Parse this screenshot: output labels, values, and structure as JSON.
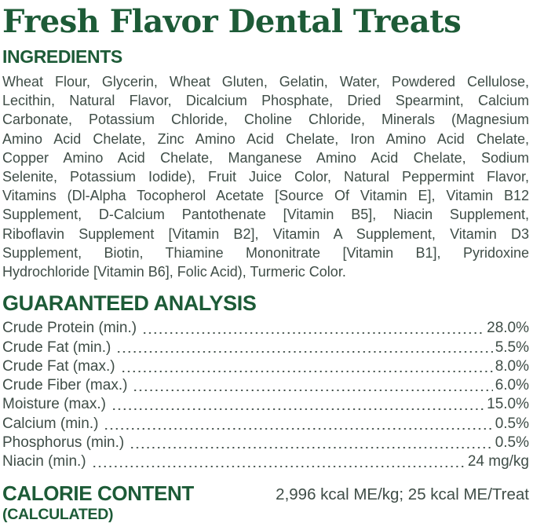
{
  "title": "Fresh Flavor Dental Treats",
  "ingredients": {
    "heading": "INGREDIENTS",
    "lines": [
      "Wheat Flour, Glycerin, Wheat Gluten, Gelatin, Water, Powdered Cellulose,",
      "Lecithin, Natural Flavor, Dicalcium Phosphate, Dried Spearmint, Calcium",
      "Carbonate, Potassium Chloride, Choline Chloride, Minerals (Magnesium",
      "Amino Acid Chelate, Zinc Amino Acid Chelate, Iron Amino Acid Chelate,",
      "Copper Amino Acid Chelate, Manganese Amino Acid Chelate, Sodium",
      "Selenite, Potassium Iodide), Fruit Juice Color, Natural Peppermint Flavor,",
      "Vitamins (Dl-Alpha Tocopherol Acetate [Source Of Vitamin E], Vitamin B12",
      "Supplement, D-Calcium Pantothenate [Vitamin B5], Niacin Supplement,",
      "Riboflavin Supplement [Vitamin B2], Vitamin A Supplement, Vitamin D3",
      "Supplement, Biotin, Thiamine Mononitrate [Vitamin B1], Pyridoxine",
      "Hydrochloride [Vitamin B6], Folic Acid), Turmeric Color."
    ]
  },
  "guaranteed_analysis": {
    "heading": "GUARANTEED ANALYSIS",
    "rows": [
      {
        "label": "Crude Protein (min.)",
        "value": "28.0%"
      },
      {
        "label": "Crude Fat (min.)",
        "value": "5.5%"
      },
      {
        "label": "Crude Fat (max.)",
        "value": "8.0%"
      },
      {
        "label": "Crude Fiber (max.)",
        "value": "6.0%"
      },
      {
        "label": "Moisture (max.)",
        "value": "15.0%"
      },
      {
        "label": "Calcium (min.)",
        "value": "0.5%"
      },
      {
        "label": "Phosphorus (min.)",
        "value": "0.5%"
      },
      {
        "label": "Niacin (min.)",
        "value": "24 mg/kg"
      }
    ]
  },
  "calorie_content": {
    "heading": "CALORIE CONTENT",
    "subheading": "(CALCULATED)",
    "value": "2,996 kcal ME/kg; 25 kcal ME/Treat"
  },
  "colors": {
    "heading_green": "#1d5b37",
    "text_ink": "#3f4d47",
    "background": "#ffffff"
  }
}
